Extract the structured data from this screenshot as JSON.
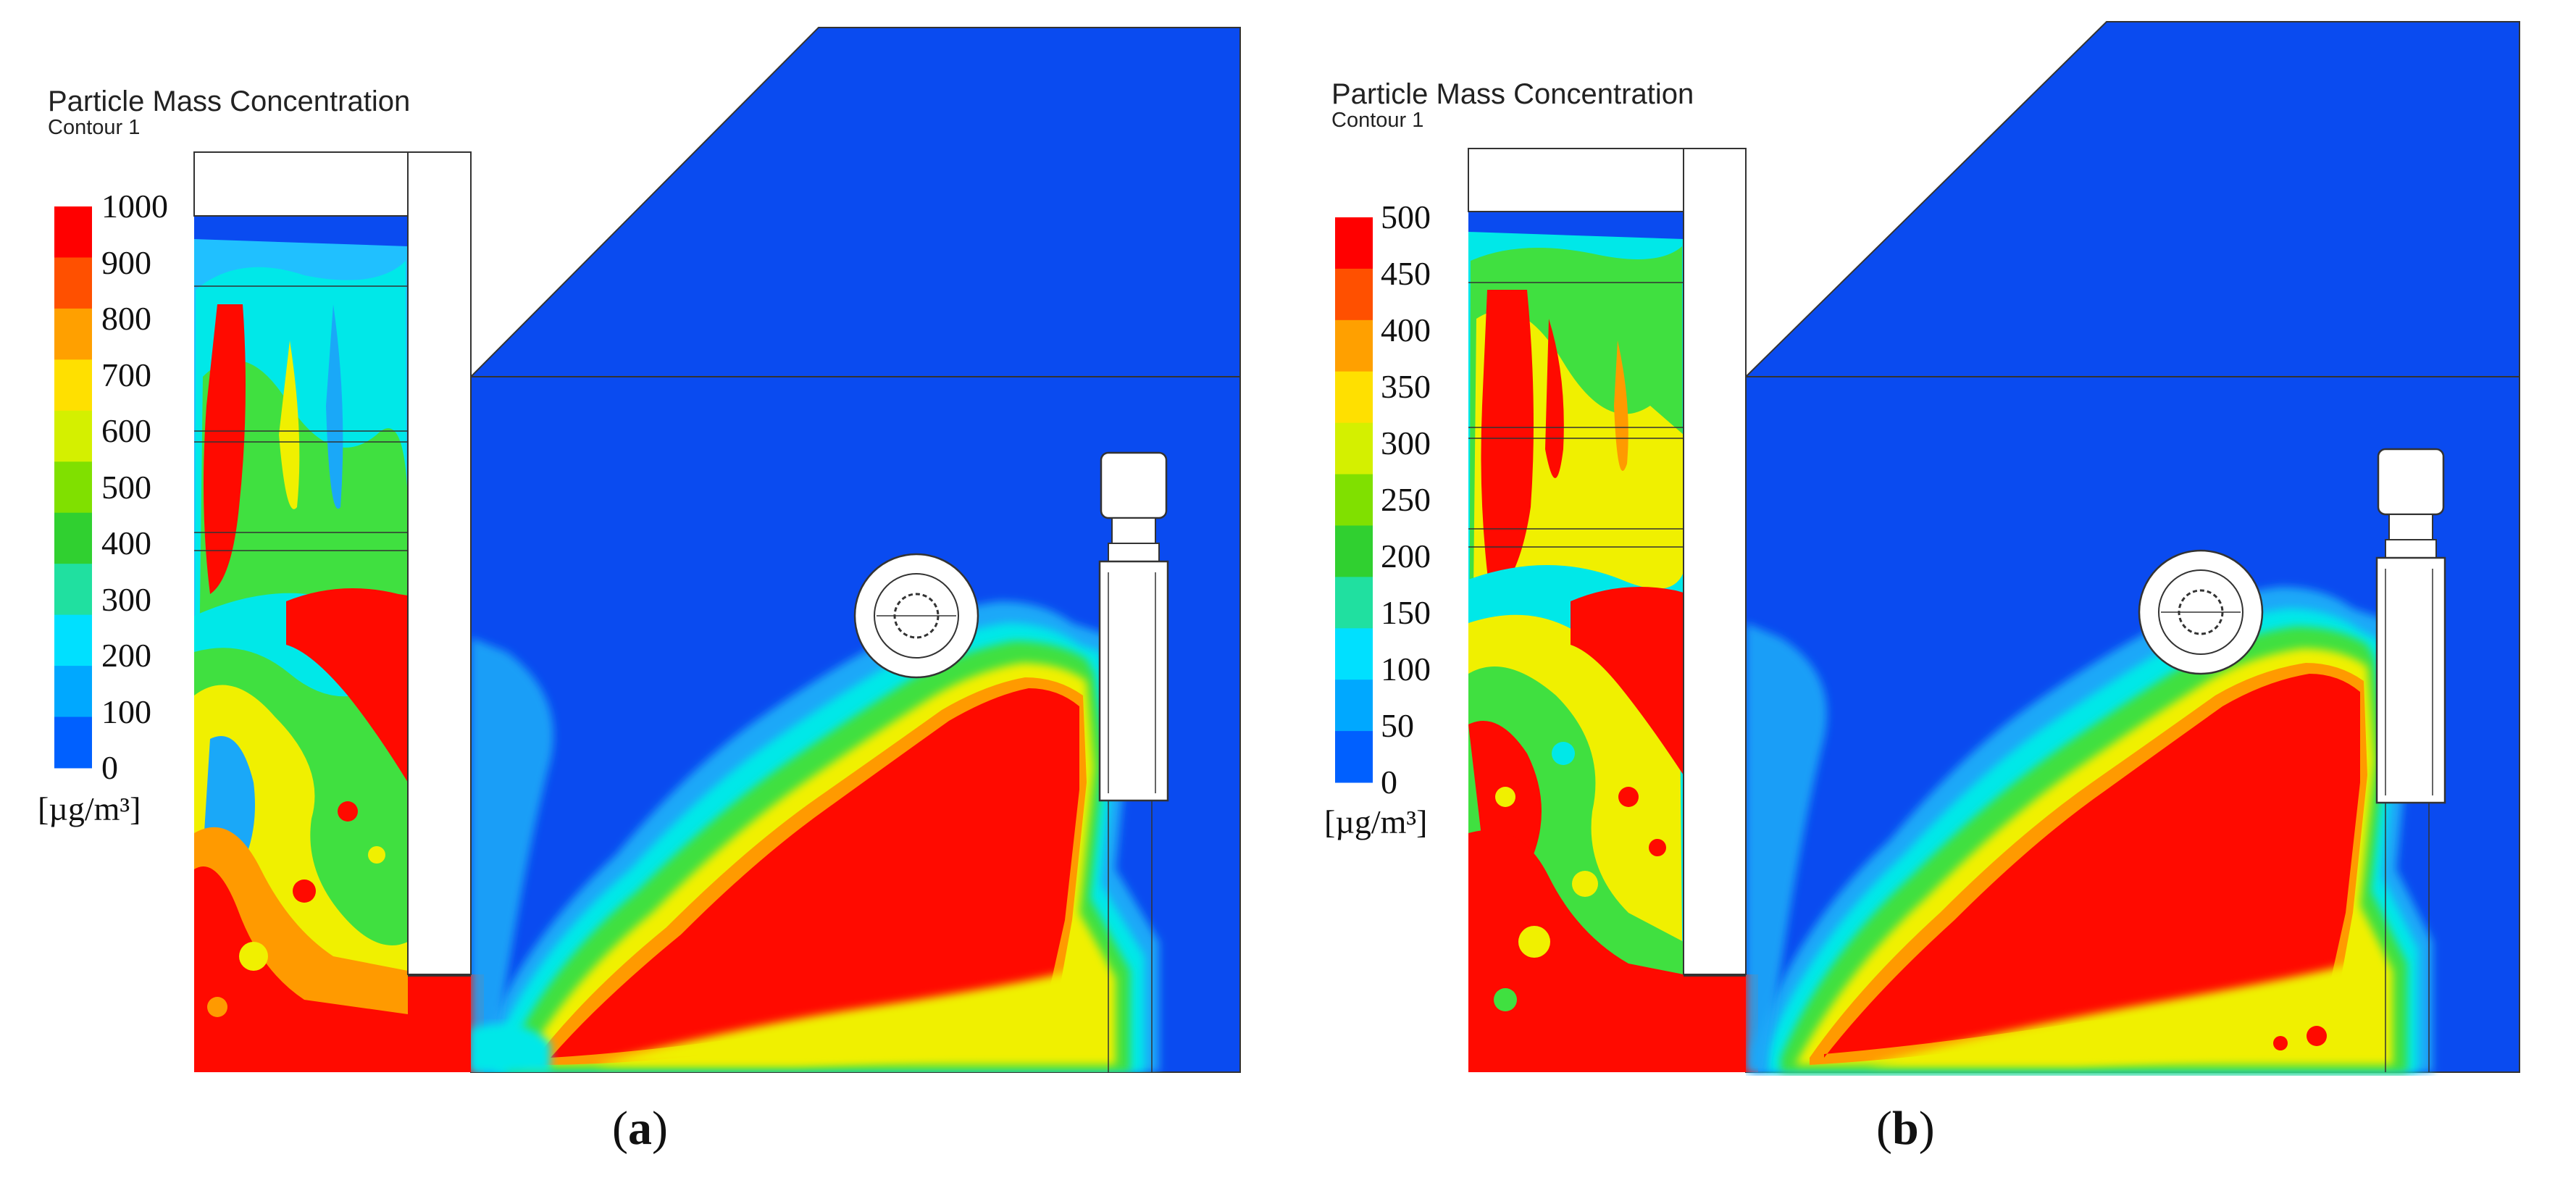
{
  "panels": [
    {
      "title": "Particle Mass Concentration",
      "subtitle": "Contour 1",
      "legend_ticks": [
        "1000",
        "900",
        "800",
        "700",
        "600",
        "500",
        "400",
        "300",
        "200",
        "100",
        "0"
      ],
      "unit": "[µg/m³]",
      "caption_open": "(",
      "caption_letter": "a",
      "caption_close": ")"
    },
    {
      "title": "Particle Mass Concentration",
      "subtitle": "Contour 1",
      "legend_ticks": [
        "500",
        "450",
        "400",
        "350",
        "300",
        "250",
        "200",
        "150",
        "100",
        "50",
        "0"
      ],
      "unit": "[µg/m³]",
      "caption_open": "(",
      "caption_letter": "b",
      "caption_close": ")"
    }
  ],
  "legend_colors": [
    "#ff0000",
    "#ff5000",
    "#ffa000",
    "#ffe000",
    "#d4f000",
    "#80e000",
    "#30d030",
    "#20e0a0",
    "#00e0ff",
    "#00a8ff",
    "#0060ff"
  ],
  "colors": {
    "background_low": "#0a4bf0",
    "high": "#ff0a00",
    "mid_orange": "#ff9a00",
    "mid_yellow": "#f0f000",
    "mid_green": "#40e040",
    "mid_cyan": "#00e8e8",
    "mid_lightblue": "#1aa8f8"
  }
}
